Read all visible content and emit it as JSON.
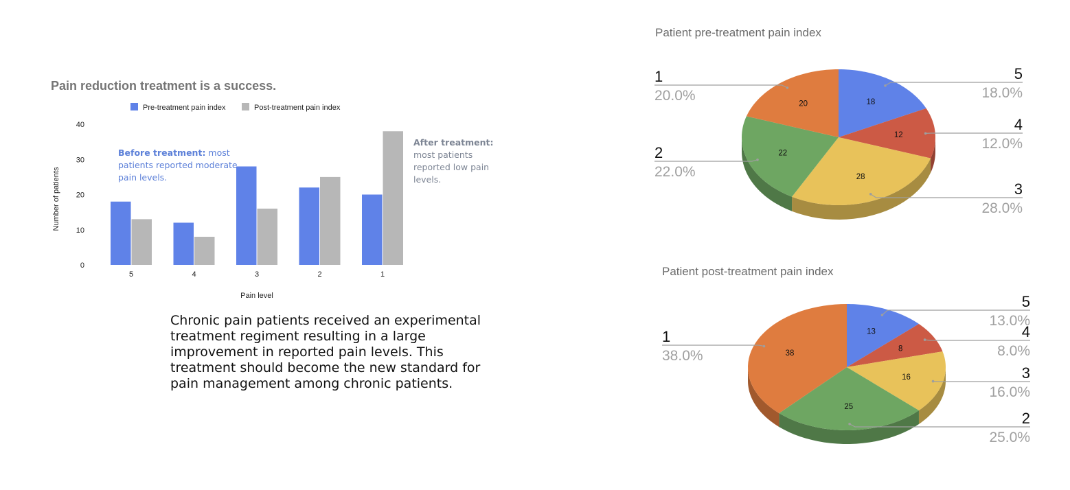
{
  "colors": {
    "pre": "#5f82e8",
    "post": "#b7b7b7",
    "pie": {
      "5": "#5f82e8",
      "4": "#cc5a45",
      "3": "#e8c25a",
      "2": "#6ea662",
      "1": "#df7c3f"
    }
  },
  "description": "Chronic pain patients received an experimental treatment regiment resulting in a large improvement in reported pain levels. This treatment should become the new standard for pain management among chronic patients.",
  "annotations": {
    "before": {
      "lead": "Before treatment",
      "colon": ":",
      "body": " most patients reported moderate pain levels."
    },
    "after": {
      "lead": "After treatment",
      "colon": ":",
      "body": " most patients reported low pain levels."
    }
  },
  "chart_data": [
    {
      "type": "bar",
      "title": "Pain reduction treatment is a success.",
      "xlabel": "Pain level",
      "ylabel": "Number of patients",
      "categories": [
        "5",
        "4",
        "3",
        "2",
        "1"
      ],
      "series": [
        {
          "name": "Pre-treatment pain index",
          "values": [
            18,
            12,
            28,
            22,
            20
          ]
        },
        {
          "name": "Post-treatment pain index",
          "values": [
            13,
            8,
            16,
            25,
            38
          ]
        }
      ],
      "ylim": [
        0,
        40
      ],
      "yticks": [
        "0",
        "10",
        "20",
        "30",
        "40"
      ],
      "legend": "top"
    },
    {
      "type": "pie",
      "title": "Patient pre-treatment pain index",
      "slices": [
        {
          "label": "5",
          "value": 18,
          "percent": "18.0%"
        },
        {
          "label": "4",
          "value": 12,
          "percent": "12.0%"
        },
        {
          "label": "3",
          "value": 28,
          "percent": "28.0%"
        },
        {
          "label": "2",
          "value": 22,
          "percent": "22.0%"
        },
        {
          "label": "1",
          "value": 20,
          "percent": "20.0%"
        }
      ]
    },
    {
      "type": "pie",
      "title": "Patient post-treatment pain index",
      "slices": [
        {
          "label": "5",
          "value": 13,
          "percent": "13.0%"
        },
        {
          "label": "4",
          "value": 8,
          "percent": "8.0%"
        },
        {
          "label": "3",
          "value": 16,
          "percent": "16.0%"
        },
        {
          "label": "2",
          "value": 25,
          "percent": "25.0%"
        },
        {
          "label": "1",
          "value": 38,
          "percent": "38.0%"
        }
      ]
    }
  ]
}
